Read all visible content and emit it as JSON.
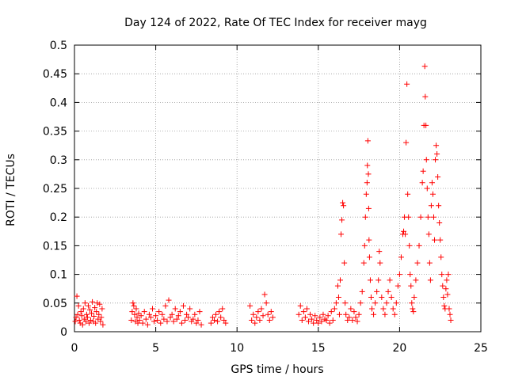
{
  "chart_data": {
    "type": "scatter",
    "title": "Day 124 of 2022, Rate Of TEC Index for receiver mayg",
    "xlabel": "GPS time / hours",
    "ylabel": "ROTI / TECUs",
    "xlim": [
      0,
      25
    ],
    "ylim": [
      0,
      0.5
    ],
    "xticks": [
      0,
      5,
      10,
      15,
      20,
      25
    ],
    "xtick_labels": [
      "0",
      "5",
      "10",
      "15",
      "20",
      "25"
    ],
    "yticks": [
      0,
      0.05,
      0.1,
      0.15,
      0.2,
      0.25,
      0.3,
      0.35,
      0.4,
      0.45,
      0.5
    ],
    "ytick_labels": [
      "0",
      "0.05",
      "0.1",
      "0.15",
      "0.2",
      "0.25",
      "0.3",
      "0.35",
      "0.4",
      "0.45",
      "0.5"
    ],
    "grid": true,
    "marker": "+",
    "color": "#ff0000",
    "series": [
      {
        "name": "ROTI",
        "points": [
          [
            0.05,
            0.018
          ],
          [
            0.1,
            0.025
          ],
          [
            0.15,
            0.062
          ],
          [
            0.2,
            0.03
          ],
          [
            0.25,
            0.045
          ],
          [
            0.3,
            0.02
          ],
          [
            0.35,
            0.015
          ],
          [
            0.4,
            0.035
          ],
          [
            0.45,
            0.028
          ],
          [
            0.5,
            0.012
          ],
          [
            0.55,
            0.04
          ],
          [
            0.6,
            0.022
          ],
          [
            0.65,
            0.05
          ],
          [
            0.7,
            0.018
          ],
          [
            0.75,
            0.03
          ],
          [
            0.8,
            0.025
          ],
          [
            0.85,
            0.045
          ],
          [
            0.9,
            0.015
          ],
          [
            0.95,
            0.038
          ],
          [
            1.0,
            0.02
          ],
          [
            1.05,
            0.032
          ],
          [
            1.1,
            0.052
          ],
          [
            1.15,
            0.018
          ],
          [
            1.2,
            0.027
          ],
          [
            1.25,
            0.042
          ],
          [
            1.3,
            0.015
          ],
          [
            1.35,
            0.035
          ],
          [
            1.4,
            0.05
          ],
          [
            1.45,
            0.022
          ],
          [
            1.5,
            0.03
          ],
          [
            1.55,
            0.048
          ],
          [
            1.6,
            0.018
          ],
          [
            1.65,
            0.025
          ],
          [
            1.7,
            0.04
          ],
          [
            1.75,
            0.012
          ],
          [
            3.5,
            0.02
          ],
          [
            3.55,
            0.035
          ],
          [
            3.6,
            0.05
          ],
          [
            3.65,
            0.045
          ],
          [
            3.7,
            0.03
          ],
          [
            3.75,
            0.018
          ],
          [
            3.8,
            0.04
          ],
          [
            3.85,
            0.025
          ],
          [
            3.9,
            0.015
          ],
          [
            3.95,
            0.032
          ],
          [
            4.0,
            0.02
          ],
          [
            4.1,
            0.028
          ],
          [
            4.2,
            0.015
          ],
          [
            4.3,
            0.035
          ],
          [
            4.4,
            0.022
          ],
          [
            4.5,
            0.012
          ],
          [
            4.6,
            0.03
          ],
          [
            4.7,
            0.025
          ],
          [
            4.8,
            0.04
          ],
          [
            4.9,
            0.018
          ],
          [
            5.0,
            0.028
          ],
          [
            5.1,
            0.02
          ],
          [
            5.2,
            0.035
          ],
          [
            5.3,
            0.015
          ],
          [
            5.4,
            0.03
          ],
          [
            5.5,
            0.022
          ],
          [
            5.6,
            0.045
          ],
          [
            5.7,
            0.018
          ],
          [
            5.8,
            0.055
          ],
          [
            5.9,
            0.025
          ],
          [
            6.0,
            0.03
          ],
          [
            6.1,
            0.018
          ],
          [
            6.2,
            0.04
          ],
          [
            6.3,
            0.022
          ],
          [
            6.4,
            0.028
          ],
          [
            6.5,
            0.035
          ],
          [
            6.6,
            0.015
          ],
          [
            6.7,
            0.045
          ],
          [
            6.8,
            0.02
          ],
          [
            6.9,
            0.03
          ],
          [
            7.0,
            0.025
          ],
          [
            7.1,
            0.04
          ],
          [
            7.2,
            0.018
          ],
          [
            7.3,
            0.022
          ],
          [
            7.4,
            0.03
          ],
          [
            7.5,
            0.015
          ],
          [
            7.6,
            0.02
          ],
          [
            7.7,
            0.035
          ],
          [
            7.8,
            0.012
          ],
          [
            8.4,
            0.015
          ],
          [
            8.5,
            0.025
          ],
          [
            8.6,
            0.02
          ],
          [
            8.7,
            0.03
          ],
          [
            8.8,
            0.018
          ],
          [
            8.9,
            0.035
          ],
          [
            9.0,
            0.025
          ],
          [
            9.1,
            0.04
          ],
          [
            9.2,
            0.02
          ],
          [
            9.3,
            0.015
          ],
          [
            10.8,
            0.045
          ],
          [
            10.9,
            0.02
          ],
          [
            11.0,
            0.03
          ],
          [
            11.1,
            0.015
          ],
          [
            11.2,
            0.025
          ],
          [
            11.3,
            0.035
          ],
          [
            11.4,
            0.02
          ],
          [
            11.5,
            0.04
          ],
          [
            11.6,
            0.028
          ],
          [
            11.7,
            0.065
          ],
          [
            11.8,
            0.05
          ],
          [
            11.9,
            0.03
          ],
          [
            12.0,
            0.02
          ],
          [
            12.1,
            0.035
          ],
          [
            12.2,
            0.025
          ],
          [
            13.8,
            0.03
          ],
          [
            13.9,
            0.045
          ],
          [
            14.0,
            0.02
          ],
          [
            14.1,
            0.035
          ],
          [
            14.2,
            0.025
          ],
          [
            14.3,
            0.04
          ],
          [
            14.4,
            0.018
          ],
          [
            14.5,
            0.03
          ],
          [
            14.6,
            0.022
          ],
          [
            14.7,
            0.015
          ],
          [
            14.8,
            0.028
          ],
          [
            14.9,
            0.02
          ],
          [
            15.0,
            0.015
          ],
          [
            15.1,
            0.025
          ],
          [
            15.2,
            0.018
          ],
          [
            15.3,
            0.03
          ],
          [
            15.4,
            0.022
          ],
          [
            15.5,
            0.02
          ],
          [
            15.6,
            0.028
          ],
          [
            15.7,
            0.015
          ],
          [
            15.8,
            0.035
          ],
          [
            15.9,
            0.02
          ],
          [
            16.0,
            0.04
          ],
          [
            16.1,
            0.05
          ],
          [
            16.2,
            0.08
          ],
          [
            16.25,
            0.06
          ],
          [
            16.3,
            0.03
          ],
          [
            16.35,
            0.09
          ],
          [
            16.4,
            0.17
          ],
          [
            16.45,
            0.195
          ],
          [
            16.5,
            0.225
          ],
          [
            16.55,
            0.22
          ],
          [
            16.6,
            0.12
          ],
          [
            16.65,
            0.05
          ],
          [
            16.7,
            0.03
          ],
          [
            16.8,
            0.02
          ],
          [
            16.9,
            0.025
          ],
          [
            17.0,
            0.04
          ],
          [
            17.1,
            0.02
          ],
          [
            17.2,
            0.035
          ],
          [
            17.3,
            0.025
          ],
          [
            17.4,
            0.018
          ],
          [
            17.5,
            0.03
          ],
          [
            17.6,
            0.05
          ],
          [
            17.7,
            0.07
          ],
          [
            17.8,
            0.12
          ],
          [
            17.85,
            0.15
          ],
          [
            17.9,
            0.2
          ],
          [
            17.95,
            0.24
          ],
          [
            18.0,
            0.26
          ],
          [
            18.02,
            0.29
          ],
          [
            18.05,
            0.333
          ],
          [
            18.08,
            0.275
          ],
          [
            18.1,
            0.215
          ],
          [
            18.12,
            0.16
          ],
          [
            18.15,
            0.13
          ],
          [
            18.2,
            0.09
          ],
          [
            18.25,
            0.06
          ],
          [
            18.3,
            0.04
          ],
          [
            18.4,
            0.03
          ],
          [
            18.5,
            0.05
          ],
          [
            18.6,
            0.07
          ],
          [
            18.7,
            0.09
          ],
          [
            18.75,
            0.14
          ],
          [
            18.8,
            0.12
          ],
          [
            18.9,
            0.06
          ],
          [
            19.0,
            0.04
          ],
          [
            19.1,
            0.03
          ],
          [
            19.2,
            0.05
          ],
          [
            19.3,
            0.07
          ],
          [
            19.4,
            0.09
          ],
          [
            19.5,
            0.06
          ],
          [
            19.6,
            0.04
          ],
          [
            19.7,
            0.03
          ],
          [
            19.8,
            0.05
          ],
          [
            19.9,
            0.08
          ],
          [
            20.0,
            0.1
          ],
          [
            20.1,
            0.13
          ],
          [
            20.2,
            0.17
          ],
          [
            20.25,
            0.175
          ],
          [
            20.3,
            0.2
          ],
          [
            20.35,
            0.17
          ],
          [
            20.4,
            0.33
          ],
          [
            20.45,
            0.432
          ],
          [
            20.5,
            0.24
          ],
          [
            20.55,
            0.2
          ],
          [
            20.6,
            0.15
          ],
          [
            20.65,
            0.1
          ],
          [
            20.7,
            0.08
          ],
          [
            20.75,
            0.05
          ],
          [
            20.8,
            0.04
          ],
          [
            20.85,
            0.035
          ],
          [
            20.9,
            0.06
          ],
          [
            21.0,
            0.09
          ],
          [
            21.1,
            0.12
          ],
          [
            21.2,
            0.15
          ],
          [
            21.3,
            0.2
          ],
          [
            21.4,
            0.26
          ],
          [
            21.45,
            0.28
          ],
          [
            21.5,
            0.36
          ],
          [
            21.55,
            0.463
          ],
          [
            21.58,
            0.41
          ],
          [
            21.62,
            0.36
          ],
          [
            21.65,
            0.3
          ],
          [
            21.7,
            0.25
          ],
          [
            21.75,
            0.2
          ],
          [
            21.8,
            0.17
          ],
          [
            21.85,
            0.12
          ],
          [
            21.9,
            0.09
          ],
          [
            21.95,
            0.22
          ],
          [
            22.0,
            0.26
          ],
          [
            22.05,
            0.24
          ],
          [
            22.1,
            0.2
          ],
          [
            22.15,
            0.16
          ],
          [
            22.2,
            0.3
          ],
          [
            22.25,
            0.325
          ],
          [
            22.3,
            0.31
          ],
          [
            22.35,
            0.27
          ],
          [
            22.4,
            0.22
          ],
          [
            22.45,
            0.19
          ],
          [
            22.5,
            0.16
          ],
          [
            22.55,
            0.13
          ],
          [
            22.6,
            0.1
          ],
          [
            22.65,
            0.08
          ],
          [
            22.7,
            0.06
          ],
          [
            22.75,
            0.045
          ],
          [
            22.8,
            0.04
          ],
          [
            22.85,
            0.075
          ],
          [
            22.9,
            0.09
          ],
          [
            22.95,
            0.065
          ],
          [
            23.0,
            0.1
          ],
          [
            23.05,
            0.04
          ],
          [
            23.1,
            0.03
          ],
          [
            23.15,
            0.02
          ]
        ]
      }
    ]
  }
}
